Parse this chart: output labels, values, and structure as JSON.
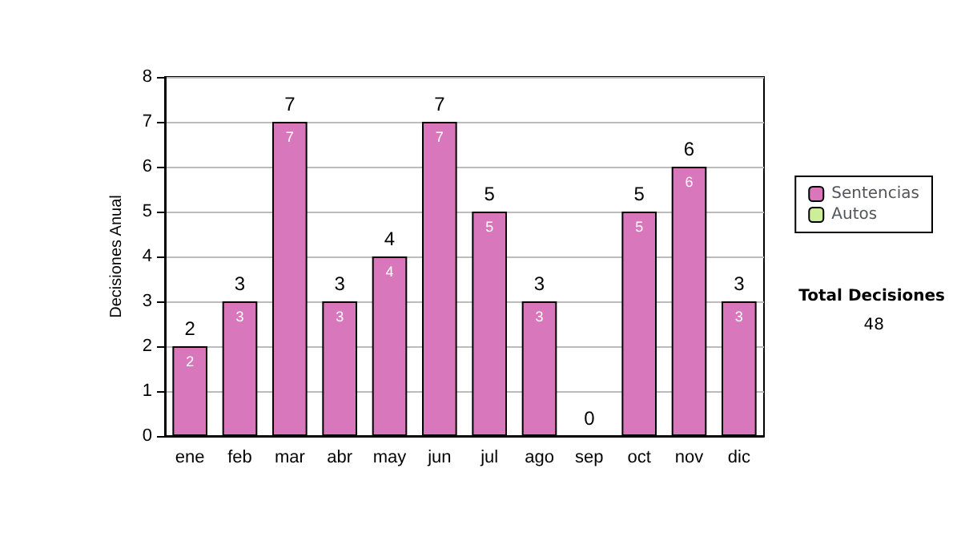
{
  "chart_data": {
    "type": "bar",
    "ylabel": "Decisiones Anual",
    "categories": [
      "ene",
      "feb",
      "mar",
      "abr",
      "may",
      "jun",
      "jul",
      "ago",
      "sep",
      "oct",
      "nov",
      "dic"
    ],
    "series": [
      {
        "name": "Sentencias",
        "color": "#d977bd",
        "values": [
          2,
          3,
          7,
          3,
          4,
          7,
          5,
          3,
          0,
          5,
          6,
          3
        ],
        "value_labels": [
          "2",
          "3",
          "7",
          "3",
          "4",
          "7",
          "5",
          "3",
          null,
          "5",
          "6",
          "3"
        ]
      },
      {
        "name": "Autos",
        "color": "#ccee99",
        "values": [
          0,
          0,
          0,
          0,
          0,
          0,
          0,
          0,
          0,
          0,
          0,
          0
        ]
      }
    ],
    "stacked": true,
    "totals": [
      "2",
      "3",
      "7",
      "3",
      "4",
      "7",
      "5",
      "3",
      "0",
      "5",
      "6",
      "3"
    ],
    "ylim": [
      0,
      8
    ],
    "yticks": [
      0,
      1,
      2,
      3,
      4,
      5,
      6,
      7,
      8
    ],
    "grid": "y",
    "legend": "right",
    "annotations": [
      "Total Decisiones",
      "48"
    ]
  }
}
